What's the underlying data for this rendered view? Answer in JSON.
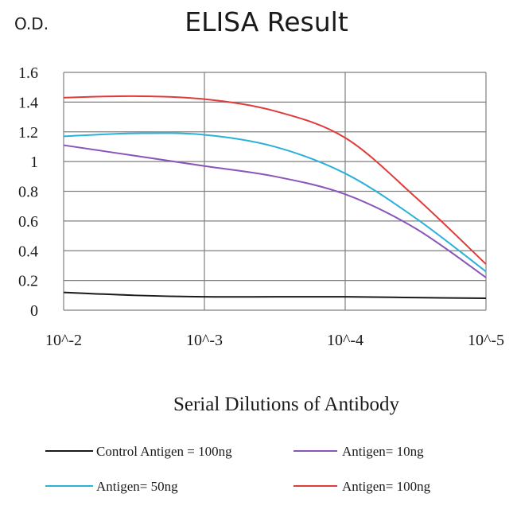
{
  "chart_data": {
    "type": "line",
    "title": "ELISA Result",
    "ylabel": "O.D.",
    "xlabel": "Serial Dilutions of Antibody",
    "categories": [
      "10^-2",
      "10^-3",
      "10^-4",
      "10^-5"
    ],
    "x": [
      0,
      0.5,
      1,
      1.5,
      2,
      2.5,
      3
    ],
    "ylim": [
      0,
      1.6
    ],
    "yticks": [
      "0",
      "0.2",
      "0.4",
      "0.6",
      "0.8",
      "1",
      "1.2",
      "1.4",
      "1.6"
    ],
    "grid": true,
    "legend_position": "bottom",
    "series": [
      {
        "name": "Control Antigen = 100ng",
        "color": "#1a1a1a",
        "values": [
          0.12,
          0.1,
          0.09,
          0.09,
          0.09,
          0.085,
          0.08
        ]
      },
      {
        "name": "Antigen= 10ng",
        "color": "#8a55b8",
        "values": [
          1.11,
          1.04,
          0.97,
          0.9,
          0.78,
          0.55,
          0.22
        ]
      },
      {
        "name": "Antigen= 50ng",
        "color": "#2bb1d9",
        "values": [
          1.17,
          1.19,
          1.18,
          1.1,
          0.92,
          0.62,
          0.26
        ]
      },
      {
        "name": "Antigen= 100ng",
        "color": "#e03b3b",
        "values": [
          1.43,
          1.44,
          1.42,
          1.34,
          1.16,
          0.76,
          0.31
        ]
      }
    ]
  }
}
